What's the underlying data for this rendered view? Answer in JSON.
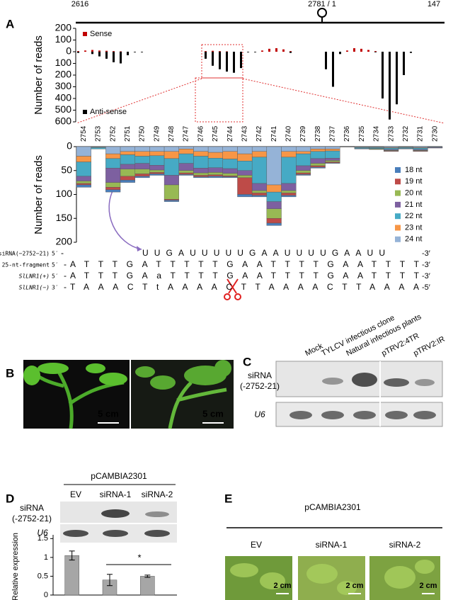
{
  "panel_labels": [
    "A",
    "B",
    "C",
    "D",
    "E"
  ],
  "chart_data": [
    {
      "type": "bar",
      "ylabel": "Number of reads",
      "x_labels": [
        "2616",
        "2781 / 1",
        "147"
      ],
      "series": [
        {
          "name": "Sense",
          "color": "#c00000",
          "values": [
            5,
            10,
            15,
            10,
            8,
            5,
            3,
            0,
            0,
            0,
            0,
            0,
            0,
            0,
            0,
            0,
            0,
            0,
            5,
            8,
            5,
            3,
            0,
            0,
            0,
            0,
            10,
            25,
            30,
            20,
            5,
            0,
            0,
            0,
            0,
            0,
            0,
            0,
            10,
            30,
            25,
            15,
            5,
            0,
            0,
            0,
            0,
            0,
            0,
            0,
            0,
            0
          ]
        },
        {
          "name": "Anti-sense",
          "color": "#000000",
          "values": [
            -10,
            0,
            -20,
            -40,
            -60,
            -90,
            -100,
            -30,
            -5,
            -5,
            0,
            0,
            0,
            0,
            0,
            0,
            0,
            0,
            -60,
            -120,
            -150,
            -170,
            -180,
            -140,
            -5,
            -5,
            0,
            0,
            0,
            0,
            -10,
            0,
            0,
            0,
            0,
            -150,
            -300,
            -20,
            0,
            0,
            0,
            0,
            -5,
            -400,
            -580,
            -450,
            -200,
            -10,
            0,
            0,
            0,
            0
          ]
        }
      ],
      "ylim": [
        -600,
        200
      ],
      "yticks": [
        200,
        100,
        0,
        {
          "value": -100,
          "label": "100"
        },
        {
          "value": -200,
          "label": "200"
        },
        {
          "value": -300,
          "label": "300"
        },
        {
          "value": -400,
          "label": "400"
        },
        {
          "value": -500,
          "label": "500"
        },
        {
          "value": -600,
          "label": "600"
        }
      ]
    },
    {
      "type": "bar",
      "stacked": true,
      "inverted": true,
      "ylabel": "Number of reads",
      "categories": [
        "2754",
        "2753",
        "2752",
        "2751",
        "2750",
        "2749",
        "2748",
        "2747",
        "2746",
        "2745",
        "2744",
        "2743",
        "2742",
        "2741",
        "2740",
        "2739",
        "2738",
        "2737",
        "2736",
        "2735",
        "2734",
        "2733",
        "2732",
        "2731",
        "2730"
      ],
      "highlight_category": "2752",
      "highlight_color": "#c00000",
      "series": [
        {
          "name": "18 nt",
          "color": "#4a7ebb",
          "values": [
            5,
            0,
            5,
            5,
            3,
            3,
            3,
            2,
            2,
            3,
            2,
            5,
            3,
            5,
            3,
            2,
            2,
            1,
            0,
            0,
            0,
            0,
            0,
            0,
            0
          ]
        },
        {
          "name": "19 nt",
          "color": "#be4b48",
          "values": [
            3,
            0,
            5,
            8,
            5,
            3,
            2,
            3,
            3,
            3,
            2,
            35,
            5,
            10,
            5,
            3,
            3,
            2,
            0,
            0,
            0,
            1,
            0,
            1,
            0
          ]
        },
        {
          "name": "20 nt",
          "color": "#98b954",
          "values": [
            5,
            0,
            10,
            15,
            10,
            5,
            30,
            5,
            5,
            5,
            5,
            5,
            5,
            20,
            5,
            5,
            5,
            3,
            0,
            0,
            1,
            1,
            0,
            1,
            0
          ]
        },
        {
          "name": "21 nt",
          "color": "#7d60a0",
          "values": [
            10,
            0,
            30,
            10,
            12,
            10,
            20,
            15,
            10,
            10,
            10,
            10,
            15,
            15,
            15,
            10,
            10,
            5,
            0,
            1,
            1,
            2,
            1,
            2,
            1
          ]
        },
        {
          "name": "22 nt",
          "color": "#46aac5",
          "values": [
            30,
            3,
            20,
            20,
            15,
            20,
            35,
            20,
            25,
            20,
            20,
            20,
            55,
            20,
            55,
            25,
            15,
            15,
            0,
            2,
            2,
            3,
            2,
            3,
            1
          ]
        },
        {
          "name": "23 nt",
          "color": "#f79646",
          "values": [
            12,
            1,
            10,
            7,
            10,
            9,
            15,
            10,
            10,
            12,
            16,
            15,
            12,
            15,
            12,
            5,
            5,
            4,
            0,
            1,
            1,
            1,
            1,
            1,
            0
          ]
        },
        {
          "name": "24 nt",
          "color": "#95b3d7",
          "values": [
            20,
            1,
            15,
            10,
            10,
            10,
            10,
            5,
            10,
            12,
            10,
            15,
            10,
            80,
            10,
            10,
            5,
            5,
            0,
            1,
            1,
            2,
            1,
            2,
            1
          ]
        }
      ],
      "ylim": [
        0,
        200
      ],
      "yticks": [
        0,
        50,
        100,
        150,
        200
      ]
    },
    {
      "type": "bar",
      "ylabel": "Relative expression",
      "categories": [
        null,
        null,
        null
      ],
      "values": [
        1.05,
        0.4,
        0.5
      ],
      "errors": [
        0.12,
        0.15,
        0.03
      ],
      "color": "#a6a6a6",
      "ylim": [
        0,
        1.6
      ],
      "yticks": [
        0,
        0.5,
        1,
        1.5
      ],
      "annotation": "*"
    }
  ],
  "sequence": {
    "rows": [
      {
        "name": "siRNA(−2752−21)",
        "italic": false,
        "end": "5′",
        "lead": "-",
        "bases": "UUGAUUUUUGAAUUUUGAAUU",
        "tail": "-3′"
      },
      {
        "name": "25-nt-fragment",
        "italic": false,
        "end": "5′",
        "lead": "-",
        "bases": "ATTTGATTTTTGAATTTTGAATTTT",
        "tail": "-3′"
      },
      {
        "name": "SlLNR1(+)",
        "italic": true,
        "end": "5′",
        "lead": "-",
        "bases": "ATTTGAaTTTTGAATTTTGAATTTT",
        "tail": "-3′"
      },
      {
        "name": "SlLNR1(−)",
        "italic": true,
        "end": "3′",
        "lead": "-",
        "bases": "TAAACTtAAAACTTAAAACTTAAAA",
        "tail": "-5′"
      }
    ]
  },
  "panel_b": {
    "scale_labels": [
      "5 cm",
      "5 cm"
    ]
  },
  "panel_c": {
    "lanes": [
      "Mock",
      "TYLCV infectious clone",
      "Natural infectious plants",
      "pTRV2:4TR",
      "pTRV2:IR"
    ],
    "probe": [
      "siRNA",
      "(-2752-21)"
    ],
    "control": "U6"
  },
  "panel_d": {
    "vector": "pCAMBIA2301",
    "lanes": [
      "EV",
      "siRNA-1",
      "siRNA-2"
    ],
    "probe": [
      "siRNA",
      "(-2752-21)"
    ],
    "control": "U6"
  },
  "panel_e": {
    "vector": "pCAMBIA2301",
    "lanes": [
      "EV",
      "siRNA-1",
      "siRNA-2"
    ],
    "scale_labels": [
      "2 cm",
      "2 cm",
      "2 cm"
    ]
  }
}
